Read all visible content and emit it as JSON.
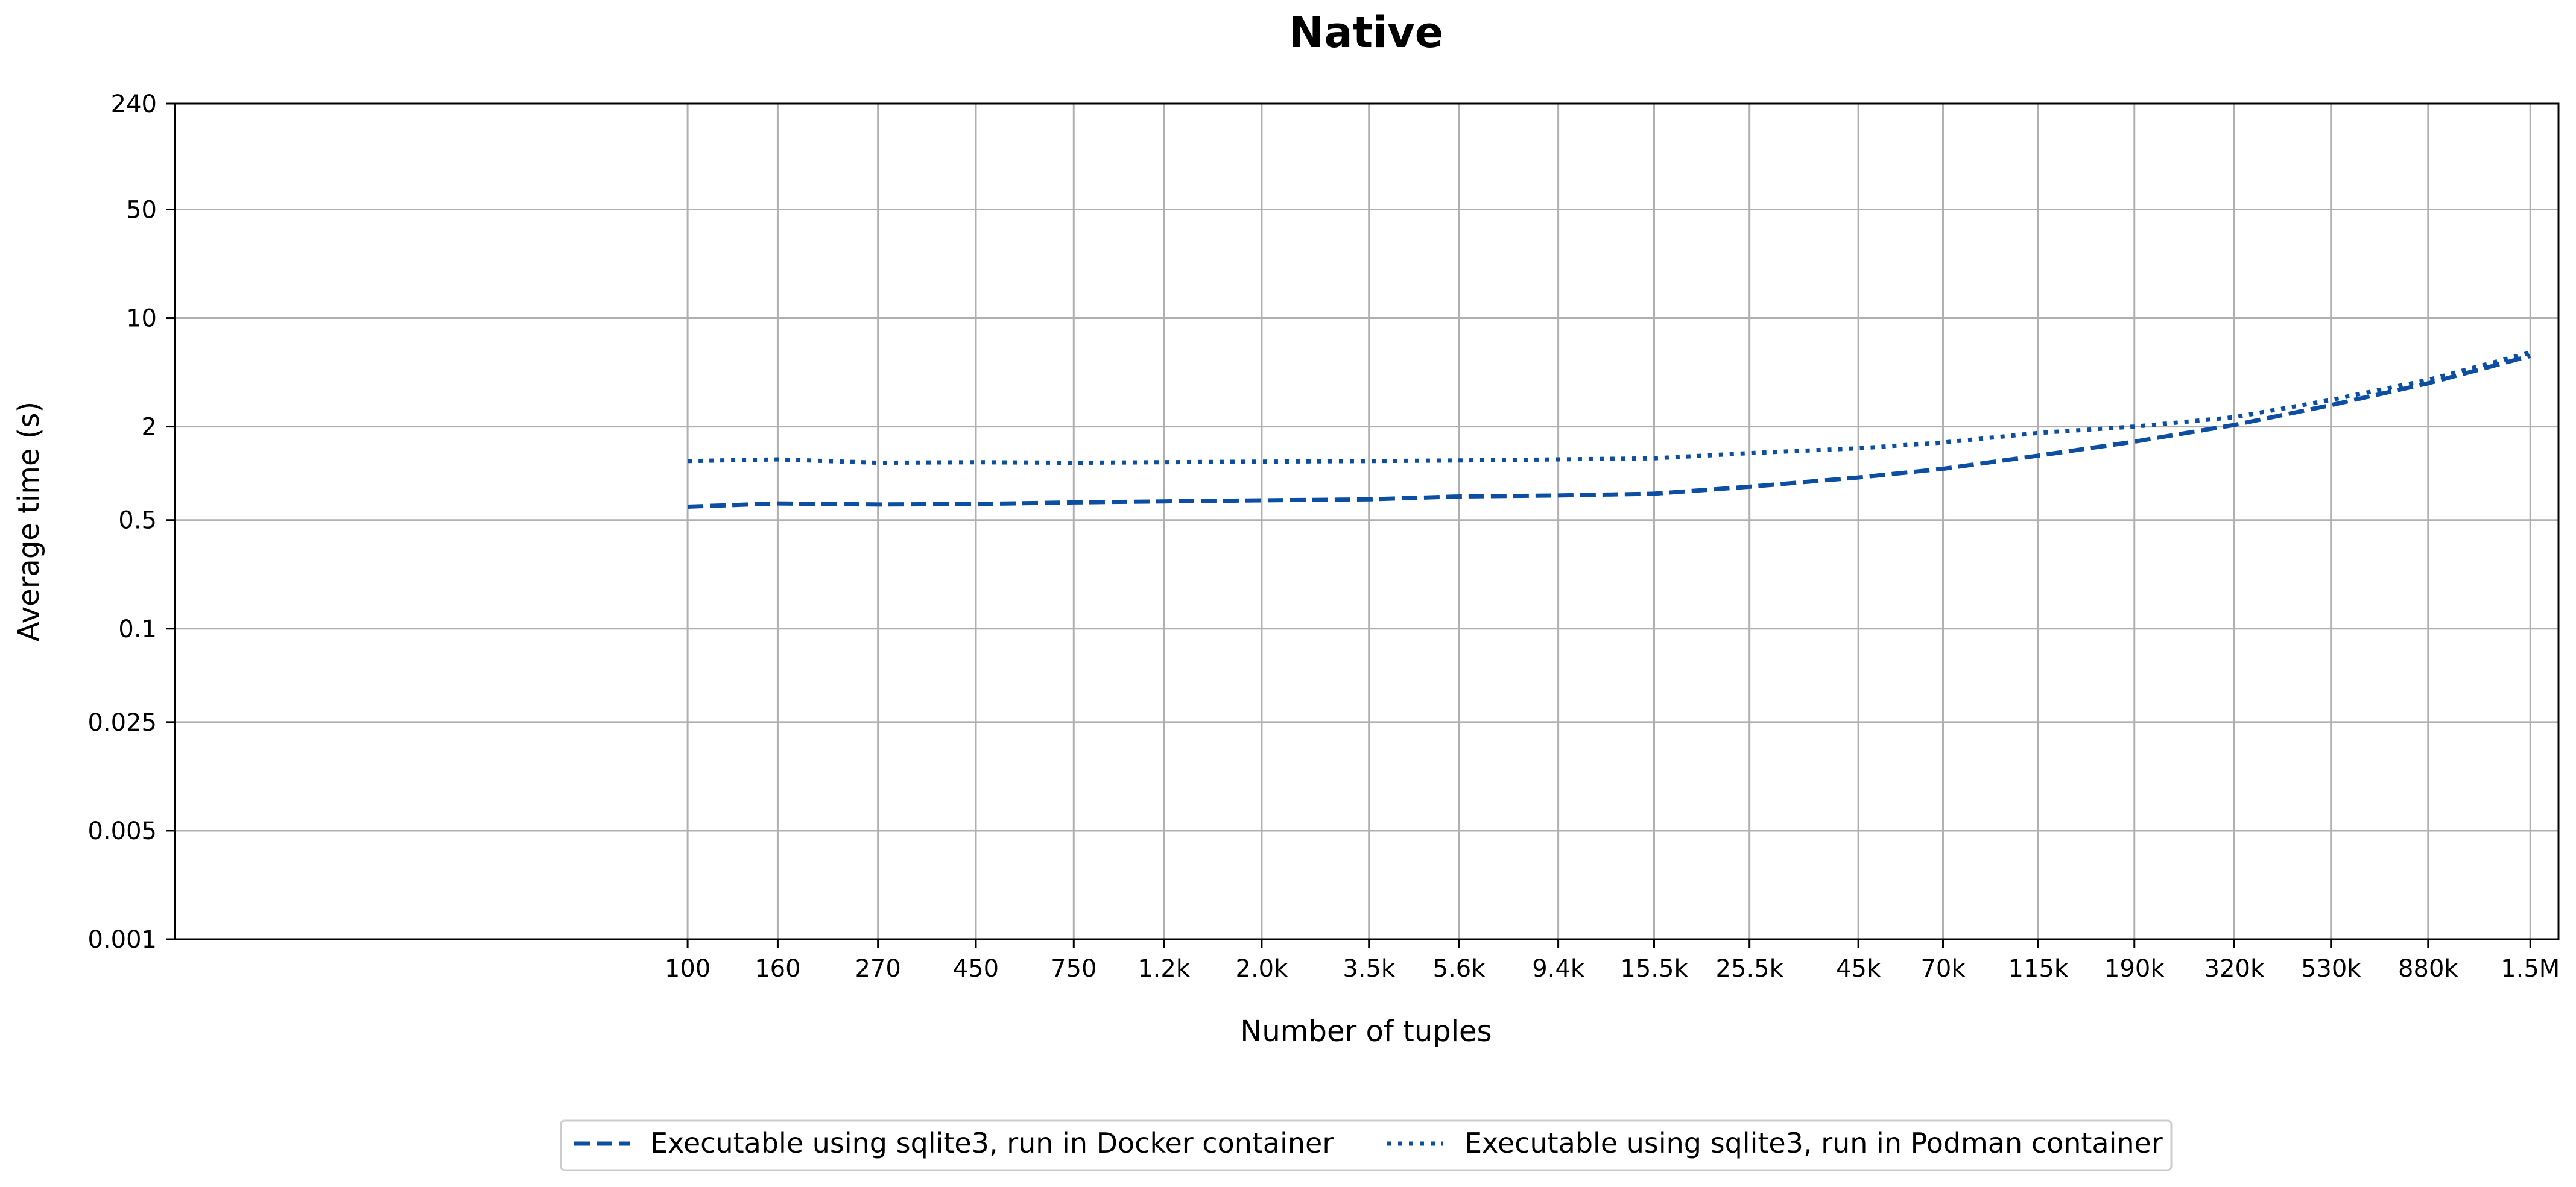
{
  "chart_data": {
    "type": "line",
    "title": "Native",
    "xlabel": "Number of tuples",
    "ylabel": "Average time (s)",
    "categories": [
      "100",
      "160",
      "270",
      "450",
      "750",
      "1.2k",
      "2.0k",
      "3.5k",
      "5.6k",
      "9.4k",
      "15.5k",
      "25.5k",
      "45k",
      "70k",
      "115k",
      "190k",
      "320k",
      "530k",
      "880k",
      "1.5M"
    ],
    "x_values": [
      100,
      160,
      270,
      450,
      750,
      1200,
      2000,
      3500,
      5600,
      9400,
      15500,
      25500,
      45000,
      70000,
      115000,
      190000,
      320000,
      530000,
      880000,
      1500000
    ],
    "x_scale": "log",
    "y_scale": "log",
    "ylim": [
      0.001,
      240
    ],
    "yticks": [
      0.001,
      0.005,
      0.025,
      0.1,
      0.5,
      2,
      10,
      50,
      240
    ],
    "ytick_labels": [
      "0.001",
      "0.005",
      "0.025",
      "0.1",
      "0.5",
      "2",
      "10",
      "50",
      "240"
    ],
    "grid": true,
    "legend_position": "bottom-center",
    "series": [
      {
        "name": "Executable using sqlite3, run in Docker container",
        "style": "dashed",
        "color": "#0b4ea2",
        "values": [
          0.61,
          0.64,
          0.63,
          0.635,
          0.65,
          0.66,
          0.67,
          0.68,
          0.71,
          0.72,
          0.74,
          0.82,
          0.94,
          1.07,
          1.3,
          1.6,
          2.05,
          2.75,
          3.8,
          5.7
        ]
      },
      {
        "name": "Executable using sqlite3, run in Podman container",
        "style": "dotted",
        "color": "#0b4ea2",
        "values": [
          1.2,
          1.23,
          1.17,
          1.18,
          1.17,
          1.18,
          1.19,
          1.2,
          1.21,
          1.23,
          1.25,
          1.35,
          1.45,
          1.58,
          1.82,
          2.0,
          2.3,
          2.97,
          4.0,
          6.0
        ]
      }
    ]
  }
}
